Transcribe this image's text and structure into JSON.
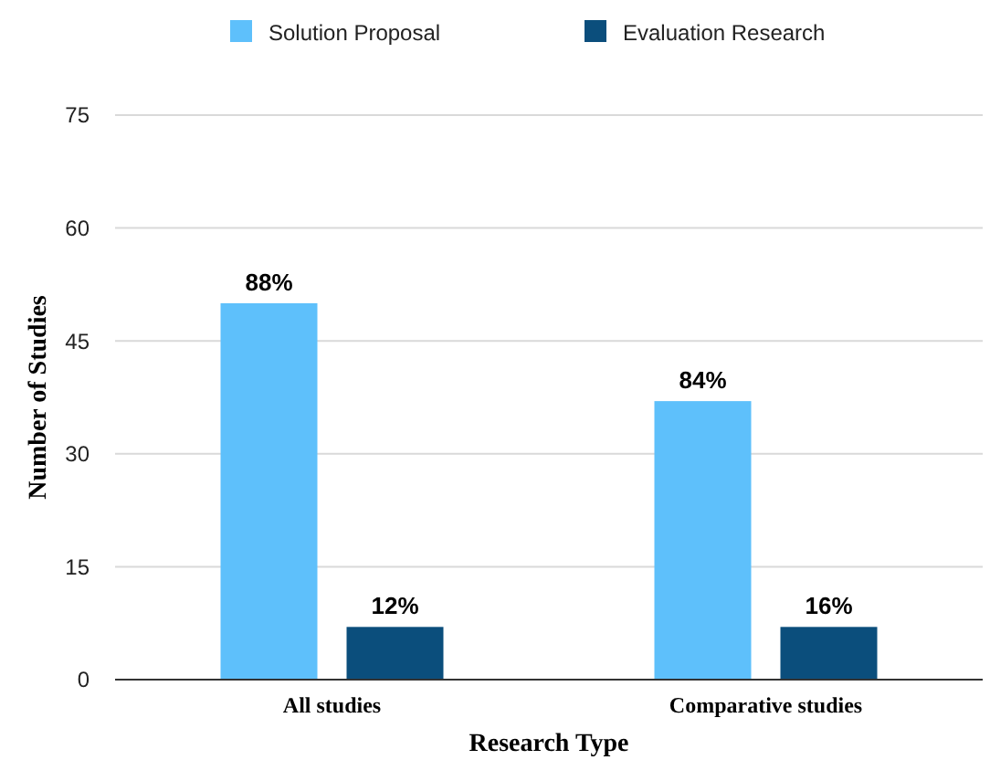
{
  "chart_data": {
    "type": "bar",
    "xlabel": "Research Type",
    "ylabel": "Number of Studies",
    "categories": [
      "All studies",
      "Comparative studies"
    ],
    "series": [
      {
        "name": "Solution Proposal",
        "color": "#5ec0fb",
        "values": [
          50,
          37
        ]
      },
      {
        "name": "Evaluation Research",
        "color": "#0b4e7c",
        "values": [
          7,
          7
        ]
      }
    ],
    "annotations": [
      "88%",
      "12%",
      "84%",
      "16%"
    ],
    "ylim": [
      0,
      75
    ],
    "yticks": [
      0,
      15,
      30,
      45,
      60,
      75
    ],
    "grid": "y",
    "legend": "top"
  }
}
